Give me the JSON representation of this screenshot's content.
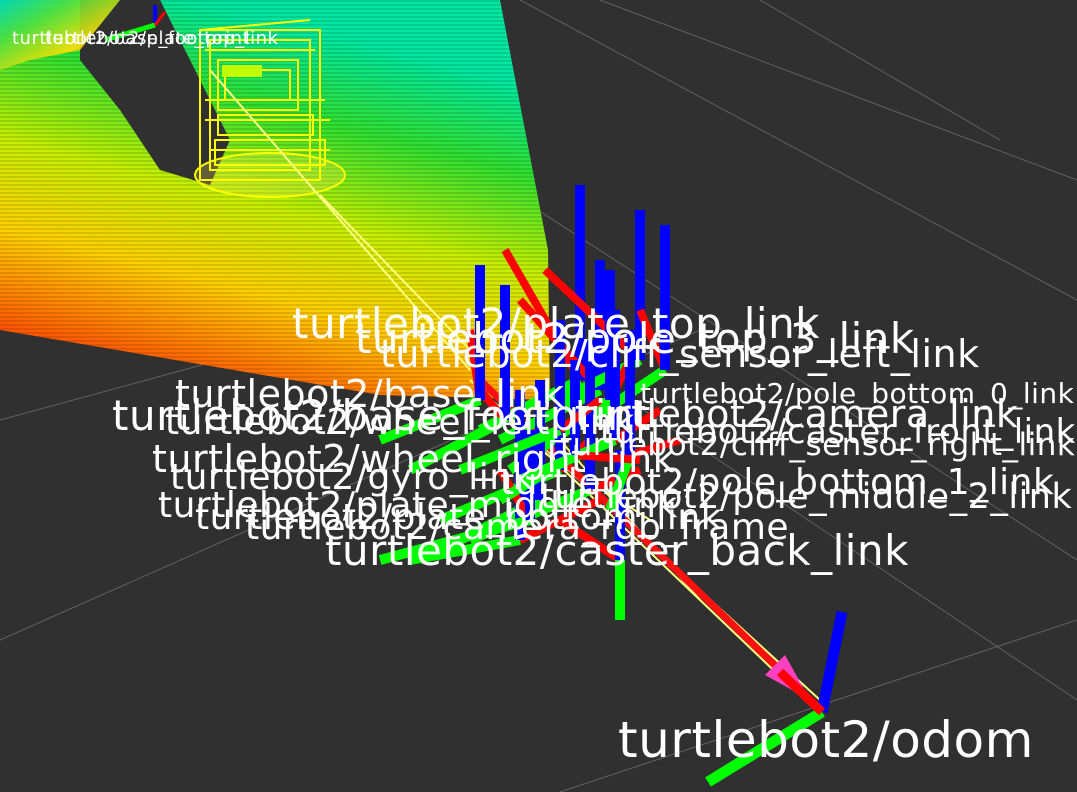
{
  "app": "RViz 3D view",
  "colors": {
    "background": "#303030",
    "grid": "#8a8a8a",
    "x_axis": "#ff0000",
    "y_axis": "#00ff00",
    "z_axis": "#0000ff",
    "tf_connection": "#ffff80",
    "odom_arrow": "#ff40c0",
    "robot_model": "#ffff00",
    "laser_near": "#ff0000",
    "laser_mid": "#ffff00",
    "laser_far": "#00ff80"
  },
  "icons": {
    "pointcloud": "laser-scan-icon",
    "axes": "tf-axes-icon",
    "arrow": "odom-arrow-icon"
  },
  "tf_frames": [
    {
      "label": "turtlebot2/odom"
    },
    {
      "label": "turtlebot2/caster_back_link"
    },
    {
      "label": "turtlebot2/plate_top_link"
    },
    {
      "label": "turtlebot2/pole_top_3_link"
    },
    {
      "label": "turtlebot2/base_link"
    },
    {
      "label": "turtlebot2/base_footprint"
    },
    {
      "label": "turtlebot2/wheel_left_link"
    },
    {
      "label": "turtlebot2/wheel_right_link"
    },
    {
      "label": "turtlebot2/gyro_link"
    },
    {
      "label": "turtlebot2/plate_middle_link"
    },
    {
      "label": "turtlebot2/plate_bottom_link"
    },
    {
      "label": "turtlebot2/camera_rgb_frame"
    },
    {
      "label": "turtlebot2/camera_link"
    },
    {
      "label": "turtlebot2/caster_front_link"
    },
    {
      "label": "turtlebot2/pole_bottom_0_link"
    },
    {
      "label": "turtlebot2/pole_bottom_1_link"
    },
    {
      "label": "turtlebot2/pole_middle_2_link"
    },
    {
      "label": "turtlebot2/cliff_sensor_left_link"
    },
    {
      "label": "turtlebot2/cliff_sensor_right_link"
    },
    {
      "label": "turtlebot2/base_footprint"
    },
    {
      "label": "turtlebot2/plate_top_link"
    }
  ]
}
